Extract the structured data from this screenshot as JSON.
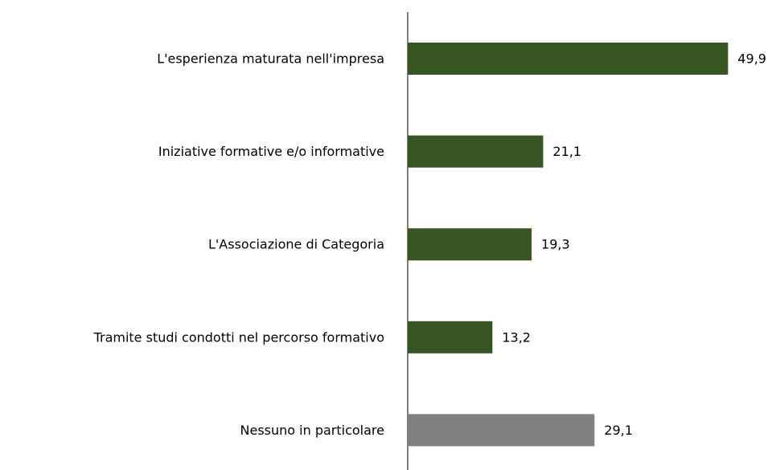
{
  "chart_data": {
    "type": "bar",
    "orientation": "horizontal",
    "categories": [
      "L'esperienza maturata nell'impresa",
      "Iniziative formative e/o informative",
      "L'Associazione di Categoria",
      "Tramite studi condotti nel percorso formativo",
      "Nessuno in particolare"
    ],
    "values": [
      49.9,
      21.1,
      19.3,
      13.2,
      29.1
    ],
    "value_labels": [
      "49,9",
      "21,1",
      "19,3",
      "13,2",
      "29,1"
    ],
    "colors": [
      "#375623",
      "#375623",
      "#375623",
      "#375623",
      "#808080"
    ],
    "xlim": [
      0,
      55
    ]
  }
}
